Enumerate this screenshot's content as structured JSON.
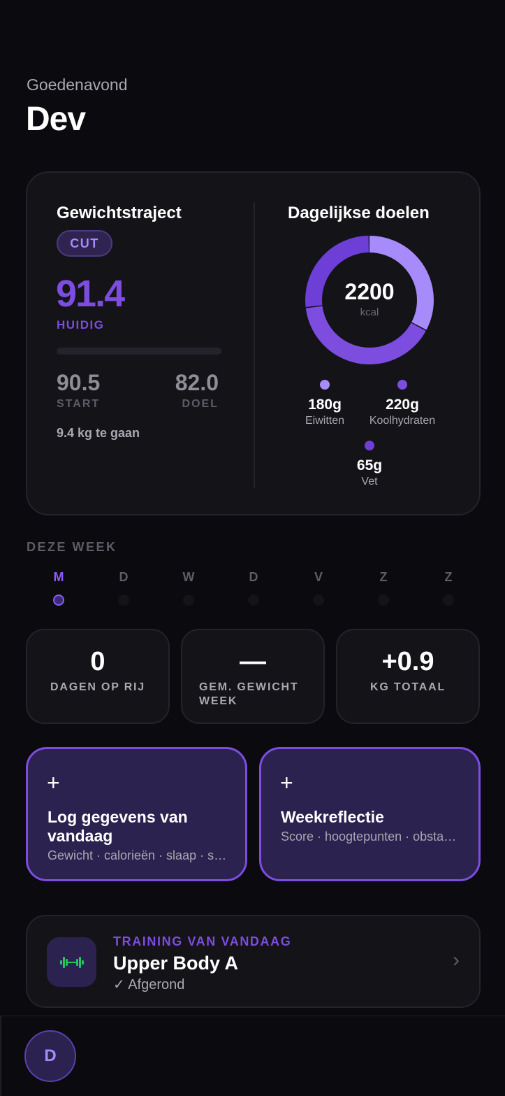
{
  "header": {
    "greeting": "Goedenavond",
    "name": "Dev"
  },
  "weight": {
    "title": "Gewichtstraject",
    "phase": "CUT",
    "current": "91.4",
    "current_label": "HUIDIG",
    "start": "90.5",
    "start_label": "START",
    "goal": "82.0",
    "goal_label": "DOEL",
    "remaining": "9.4 kg te gaan",
    "progress": 0
  },
  "goals": {
    "title": "Dagelijkse doelen",
    "kcal": "2200",
    "kcal_unit": "kcal",
    "macros": [
      {
        "value": "180g",
        "label": "Eiwitten",
        "color": "#a78bfa"
      },
      {
        "value": "220g",
        "label": "Koolhydraten",
        "color": "#7c4ddf"
      },
      {
        "value": "65g",
        "label": "Vet",
        "color": "#6d3fd6"
      }
    ]
  },
  "week": {
    "title": "DEZE WEEK",
    "days": [
      "M",
      "D",
      "W",
      "D",
      "V",
      "Z",
      "Z"
    ],
    "active_index": 0
  },
  "stats": [
    {
      "value": "0",
      "label": "DAGEN OP RIJ"
    },
    {
      "value": "—",
      "label": "GEM. GEWICHT WEEK"
    },
    {
      "value": "+0.9",
      "label": "KG TOTAAL"
    }
  ],
  "actions": [
    {
      "plus": "+",
      "title": "Log gegevens van vandaag",
      "subtitle": "Gewicht · calorieën · slaap · stappen"
    },
    {
      "plus": "+",
      "title": "Weekreflectie",
      "subtitle": "Score · hoogtepunten · obstakels"
    }
  ],
  "training": {
    "eyebrow": "TRAINING VAN VANDAAG",
    "title": "Upper Body A",
    "status": "✓ Afgerond",
    "icon": "dumbbell-icon",
    "icon_color": "#22c55e"
  },
  "nav": {
    "avatar_initial": "D"
  },
  "colors": {
    "accent": "#7c4ddf",
    "accent_light": "#a78bfa",
    "background": "#0b0a0e",
    "card": "#141318"
  }
}
